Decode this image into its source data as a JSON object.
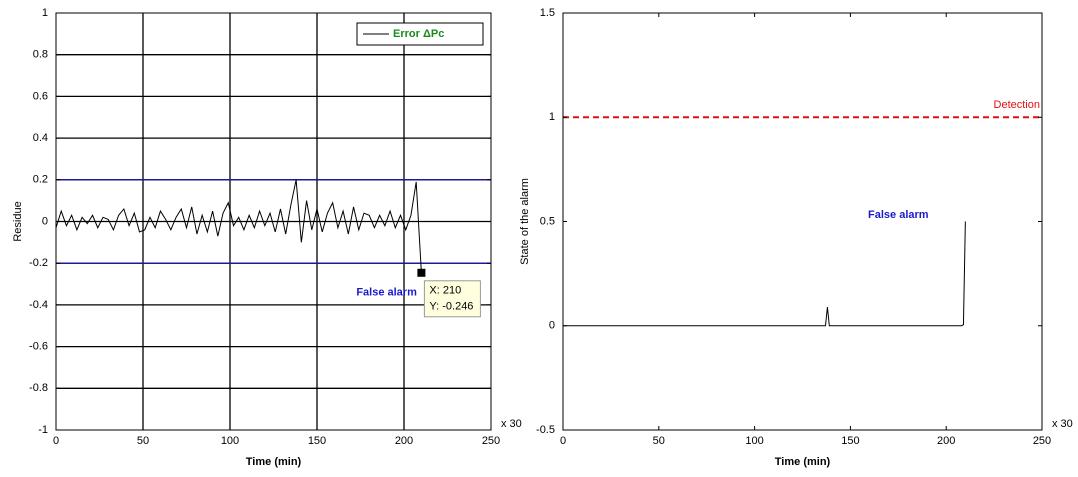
{
  "chart_data": [
    {
      "type": "line",
      "xlabel": "Time (min)",
      "ylabel": "Residue",
      "x_multiplier_label": "x 30",
      "xlim": [
        0,
        250
      ],
      "xticks": [
        0,
        50,
        100,
        150,
        200,
        250
      ],
      "ylim": [
        -1,
        1
      ],
      "yticks": [
        -1,
        -0.8,
        -0.6,
        -0.4,
        -0.2,
        0,
        0.2,
        0.4,
        0.6,
        0.8,
        1
      ],
      "grid": true,
      "legend": "upper right",
      "thresholds": [
        0.2,
        -0.2
      ],
      "threshold_color": "#1a1a9c",
      "annotation": "False alarm",
      "annotation_color": "#1a1acc",
      "datatip": {
        "x": 210,
        "y": -0.246,
        "labels": [
          "X: 210",
          "Y: -0.246"
        ]
      },
      "x": [
        0,
        3,
        6,
        9,
        12,
        15,
        18,
        21,
        24,
        27,
        30,
        33,
        36,
        39,
        42,
        45,
        48,
        51,
        54,
        57,
        60,
        63,
        66,
        69,
        72,
        75,
        78,
        81,
        84,
        87,
        90,
        93,
        96,
        99,
        102,
        105,
        108,
        111,
        114,
        117,
        120,
        123,
        126,
        129,
        132,
        135,
        138,
        141,
        144,
        147,
        150,
        153,
        156,
        159,
        162,
        165,
        168,
        171,
        174,
        177,
        180,
        183,
        186,
        189,
        192,
        195,
        198,
        201,
        204,
        207,
        210
      ],
      "series": [
        {
          "name": "Error  ΔPc",
          "color": "#000000",
          "legend_color": "#1a8a1a",
          "values": [
            -0.03,
            0.05,
            -0.02,
            0.03,
            -0.04,
            0.02,
            -0.01,
            0.03,
            -0.03,
            0.02,
            0.01,
            -0.04,
            0.03,
            0.06,
            -0.02,
            0.04,
            -0.05,
            -0.04,
            0.02,
            -0.03,
            0.05,
            0.01,
            -0.04,
            0.02,
            0.06,
            -0.03,
            0.07,
            -0.06,
            0.03,
            -0.05,
            0.05,
            -0.07,
            0.04,
            0.09,
            -0.02,
            0.02,
            -0.04,
            0.03,
            -0.03,
            0.05,
            -0.02,
            0.04,
            -0.05,
            0.06,
            -0.06,
            0.08,
            0.2,
            -0.1,
            0.1,
            -0.04,
            0.06,
            -0.05,
            0.04,
            0.09,
            -0.03,
            0.05,
            -0.06,
            0.07,
            -0.04,
            0.04,
            0.03,
            -0.03,
            0.03,
            -0.02,
            0.05,
            -0.03,
            0.03,
            -0.04,
            0.03,
            0.19,
            -0.246
          ]
        }
      ]
    },
    {
      "type": "line",
      "xlabel": "Time (min)",
      "ylabel": "State of the alarm",
      "x_multiplier_label": "x 30",
      "xlim": [
        0,
        250
      ],
      "xticks": [
        0,
        50,
        100,
        150,
        200,
        250
      ],
      "ylim": [
        -0.5,
        1.5
      ],
      "yticks": [
        -0.5,
        0,
        0.5,
        1,
        1.5
      ],
      "grid": false,
      "reference": {
        "value": 1,
        "label": "Detection",
        "color": "#e01010"
      },
      "annotation": "False alarm",
      "annotation_color": "#1a1acc",
      "x": [
        0,
        137,
        138,
        139,
        208,
        209,
        210
      ],
      "series": [
        {
          "color": "#000000",
          "values": [
            0,
            0,
            0.09,
            0,
            0,
            0.005,
            0.5
          ]
        }
      ]
    }
  ]
}
